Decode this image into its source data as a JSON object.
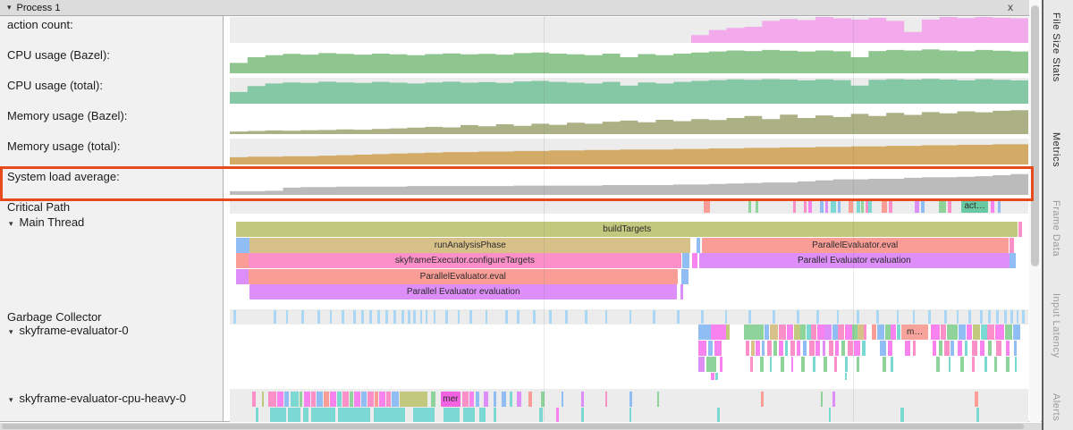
{
  "window": {
    "title": "Process 1",
    "collapse": "▾",
    "close": "x"
  },
  "side_tabs": [
    {
      "label": "File Size Stats",
      "active": true
    },
    {
      "label": "Metrics",
      "active": true
    },
    {
      "label": "Frame Data",
      "active": false
    },
    {
      "label": "Input Latency",
      "active": false
    },
    {
      "label": "Alerts",
      "active": false
    }
  ],
  "metric_rows": [
    {
      "label": "action count:"
    },
    {
      "label": "CPU usage (Bazel):"
    },
    {
      "label": "CPU usage (total):"
    },
    {
      "label": "Memory usage (Bazel):"
    },
    {
      "label": "Memory usage (total):"
    },
    {
      "label": "System load average:"
    }
  ],
  "chart_data": [
    {
      "type": "area",
      "title": "action count",
      "color": "#f2aaed",
      "ylim": [
        0,
        1
      ],
      "values": [
        0,
        0,
        0,
        0,
        0,
        0,
        0,
        0,
        0,
        0,
        0,
        0,
        0,
        0,
        0,
        0,
        0,
        0,
        0,
        0,
        0,
        0,
        0,
        0,
        0,
        0,
        0.3,
        0.5,
        0.58,
        0.62,
        0.85,
        0.92,
        0.88,
        1,
        0.95,
        0.9,
        0.97,
        0.85,
        0.42,
        0.9,
        1,
        0.96,
        1,
        0.97,
        0.95
      ]
    },
    {
      "type": "area",
      "title": "CPU usage (Bazel)",
      "color": "#8fc58e",
      "ylim": [
        0,
        1
      ],
      "values": [
        0.4,
        0.62,
        0.7,
        0.75,
        0.72,
        0.78,
        0.75,
        0.72,
        0.76,
        0.73,
        0.7,
        0.74,
        0.77,
        0.73,
        0.75,
        0.72,
        0.78,
        0.8,
        0.76,
        0.73,
        0.7,
        0.76,
        0.62,
        0.74,
        0.7,
        0.76,
        0.8,
        0.84,
        0.88,
        0.86,
        0.9,
        0.87,
        0.84,
        0.88,
        0.85,
        0.62,
        0.86,
        0.9,
        0.88,
        0.92,
        0.88,
        0.85,
        0.9,
        0.87,
        0.84
      ]
    },
    {
      "type": "area",
      "title": "CPU usage (total)",
      "color": "#85c8a5",
      "ylim": [
        0,
        1
      ],
      "values": [
        0.45,
        0.68,
        0.78,
        0.82,
        0.8,
        0.85,
        0.82,
        0.8,
        0.84,
        0.81,
        0.78,
        0.82,
        0.85,
        0.81,
        0.83,
        0.8,
        0.86,
        0.88,
        0.84,
        0.81,
        0.78,
        0.84,
        0.7,
        0.82,
        0.78,
        0.84,
        0.88,
        0.91,
        0.94,
        0.92,
        0.95,
        0.93,
        0.9,
        0.94,
        0.91,
        0.7,
        0.92,
        0.95,
        0.93,
        0.96,
        0.93,
        0.9,
        0.95,
        0.92,
        0.9
      ]
    },
    {
      "type": "area",
      "title": "Memory usage (Bazel)",
      "color": "#abb184",
      "ylim": [
        0,
        1
      ],
      "values": [
        0.1,
        0.12,
        0.14,
        0.13,
        0.15,
        0.16,
        0.18,
        0.17,
        0.2,
        0.22,
        0.25,
        0.28,
        0.26,
        0.35,
        0.3,
        0.38,
        0.32,
        0.4,
        0.36,
        0.44,
        0.4,
        0.48,
        0.52,
        0.46,
        0.55,
        0.5,
        0.58,
        0.54,
        0.62,
        0.7,
        0.58,
        0.75,
        0.62,
        0.72,
        0.66,
        0.78,
        0.7,
        0.82,
        0.74,
        0.85,
        0.8,
        0.88,
        0.84,
        0.9,
        0.92
      ]
    },
    {
      "type": "area",
      "title": "Memory usage (total)",
      "color": "#d3ab66",
      "ylim": [
        0,
        1
      ],
      "values": [
        0.28,
        0.3,
        0.3,
        0.32,
        0.32,
        0.34,
        0.36,
        0.38,
        0.4,
        0.42,
        0.44,
        0.46,
        0.48,
        0.48,
        0.5,
        0.5,
        0.52,
        0.52,
        0.54,
        0.54,
        0.56,
        0.56,
        0.58,
        0.58,
        0.58,
        0.6,
        0.6,
        0.62,
        0.62,
        0.64,
        0.64,
        0.66,
        0.66,
        0.68,
        0.68,
        0.7,
        0.7,
        0.72,
        0.72,
        0.74,
        0.74,
        0.76,
        0.76,
        0.78,
        0.78
      ]
    },
    {
      "type": "area",
      "title": "System load average",
      "color": "#bbbbbb",
      "ylim": [
        0,
        1
      ],
      "values": [
        0.14,
        0.14,
        0.16,
        0.28,
        0.3,
        0.3,
        0.32,
        0.32,
        0.32,
        0.32,
        0.34,
        0.34,
        0.34,
        0.34,
        0.34,
        0.34,
        0.36,
        0.36,
        0.36,
        0.36,
        0.36,
        0.38,
        0.38,
        0.38,
        0.38,
        0.4,
        0.4,
        0.42,
        0.44,
        0.46,
        0.48,
        0.48,
        0.52,
        0.56,
        0.6,
        0.6,
        0.62,
        0.62,
        0.66,
        0.68,
        0.68,
        0.7,
        0.72,
        0.76,
        0.8
      ]
    }
  ],
  "palette": {
    "blue": "#8fbdf4",
    "magenta": "#f883ee",
    "pink": "#fb90c8",
    "green": "#8ed39a",
    "tan": "#d8c089",
    "purple": "#dd8ef8",
    "teal": "#7cd8d2",
    "salmon": "#fa9d96",
    "olive": "#c2c87e",
    "chipgreen": "#69c9a2",
    "chipmagenta": "#f263e2",
    "chipsalmon": "#f7a29b",
    "gcblue": "#abd7f4"
  },
  "highlight": {
    "color": "#e8491d"
  },
  "track_labels": {
    "critical_path": "Critical Path",
    "main_thread": "Main Thread",
    "gc": "Garbage Collector",
    "eval0": "skyframe-evaluator-0",
    "evalcpu": "skyframe-evaluator-cpu-heavy-0"
  },
  "critical_path_spans": [
    [
      59.4,
      0.7,
      "salmon"
    ],
    [
      64.9,
      0.35,
      "green"
    ],
    [
      65.8,
      0.35,
      "green"
    ],
    [
      70.5,
      0.35,
      "pink"
    ],
    [
      71.9,
      0.35,
      "pink"
    ],
    [
      72.5,
      0.35,
      "magenta"
    ],
    [
      73.9,
      0.45,
      "blue"
    ],
    [
      74.6,
      0.35,
      "purple"
    ],
    [
      75.2,
      0.7,
      "teal"
    ],
    [
      76.1,
      0.35,
      "blue"
    ],
    [
      77.5,
      0.55,
      "salmon"
    ],
    [
      78.5,
      0.45,
      "teal"
    ],
    [
      79.1,
      0.35,
      "green"
    ],
    [
      79.6,
      0.35,
      "pink"
    ],
    [
      80.0,
      0.45,
      "teal"
    ],
    [
      81.6,
      0.7,
      "salmon"
    ],
    [
      82.5,
      0.45,
      "pink"
    ],
    [
      85.8,
      0.55,
      "purple"
    ],
    [
      86.6,
      0.45,
      "blue"
    ],
    [
      88.8,
      0.9,
      "green"
    ],
    [
      89.9,
      0.45,
      "pink"
    ],
    [
      91.6,
      3.4,
      "chipgreen",
      "act…"
    ],
    [
      95.3,
      0.45,
      "magenta"
    ],
    [
      96.2,
      0.3,
      "blue"
    ]
  ],
  "main_thread_rows": [
    [
      [
        0.8,
        97.9,
        "olive",
        "buildTargets"
      ],
      [
        98.8,
        0.4,
        "pink"
      ]
    ],
    [
      [
        0.8,
        1.7,
        "blue"
      ],
      [
        2.5,
        55.2,
        "tan",
        "runAnalysisPhase"
      ],
      [
        58.4,
        0.5,
        "blue"
      ],
      [
        59.1,
        38.4,
        "salmon",
        "ParallelEvaluator.eval"
      ],
      [
        97.6,
        0.6,
        "pink"
      ]
    ],
    [
      [
        0.8,
        1.5,
        "salmon"
      ],
      [
        2.3,
        54.3,
        "pink",
        "skyframeExecutor.configureTargets"
      ],
      [
        56.7,
        0.9,
        "blue"
      ],
      [
        57.9,
        0.7,
        "magenta"
      ],
      [
        58.8,
        38.8,
        "purple",
        "Parallel Evaluator evaluation"
      ],
      [
        97.7,
        0.7,
        "blue"
      ]
    ],
    [
      [
        0.8,
        1.5,
        "purple"
      ],
      [
        2.3,
        53.8,
        "salmon",
        "ParallelEvaluator.eval"
      ],
      [
        56.6,
        0.9,
        "blue"
      ]
    ],
    [
      [
        2.5,
        53.5,
        "purple",
        "Parallel Evaluator evaluation"
      ],
      [
        56.4,
        0.4,
        "purple"
      ]
    ]
  ],
  "gc_ticks": [
    0.5,
    5.5,
    7,
    9,
    11,
    12.5,
    14,
    15.5,
    16.5,
    17.5,
    18.5,
    19.5,
    20.5,
    21.5,
    22.3,
    23,
    23.8,
    24.5,
    25.5,
    27,
    28.5,
    30,
    32,
    34.5,
    36,
    38,
    40,
    42,
    44.5,
    47,
    50,
    53,
    56,
    59,
    62,
    65,
    68,
    71,
    73.5,
    76,
    78.5,
    81,
    83.5,
    85.5,
    87.5,
    89.5,
    91,
    92.5,
    94,
    95,
    96,
    97,
    97.8,
    98.5,
    99.2
  ],
  "evaluator0_levels": [
    [
      [
        58.7,
        1.5,
        "blue"
      ],
      [
        60.2,
        2.0,
        "magenta"
      ],
      [
        62.2,
        0.4,
        "olive"
      ],
      [
        64.4,
        2.5,
        "green"
      ],
      [
        67.0,
        0.5,
        "blue"
      ],
      [
        67.6,
        1.1,
        "tan"
      ],
      [
        68.8,
        0.9,
        "pink"
      ],
      [
        69.8,
        0.8,
        "magenta"
      ],
      [
        70.7,
        0.7,
        "olive"
      ],
      [
        71.4,
        0.7,
        "green"
      ],
      [
        72.2,
        0.6,
        "teal"
      ],
      [
        72.8,
        0.7,
        "pink"
      ],
      [
        73.6,
        0.9,
        "magenta"
      ],
      [
        74.5,
        0.9,
        "purple"
      ],
      [
        75.5,
        0.7,
        "blue"
      ],
      [
        76.2,
        0.7,
        "pink"
      ],
      [
        77.0,
        0.9,
        "magenta"
      ],
      [
        77.9,
        0.7,
        "green"
      ],
      [
        78.6,
        0.8,
        "tan"
      ],
      [
        79.4,
        0.3,
        "pink"
      ],
      [
        80.4,
        0.6,
        "salmon"
      ],
      [
        81.1,
        0.9,
        "blue"
      ],
      [
        82.1,
        0.7,
        "green"
      ],
      [
        82.8,
        0.6,
        "magenta"
      ],
      [
        83.5,
        0.5,
        "teal"
      ],
      [
        84.1,
        3.4,
        "chipsalmon",
        "m…"
      ],
      [
        87.8,
        1.1,
        "magenta"
      ],
      [
        89.0,
        0.7,
        "pink"
      ],
      [
        89.8,
        1.4,
        "green"
      ],
      [
        91.3,
        0.9,
        "blue"
      ],
      [
        92.3,
        0.7,
        "magenta"
      ],
      [
        93.1,
        0.9,
        "olive"
      ],
      [
        94.1,
        0.7,
        "teal"
      ],
      [
        94.9,
        0.9,
        "pink"
      ],
      [
        95.9,
        1.1,
        "magenta"
      ],
      [
        97.1,
        0.9,
        "green"
      ],
      [
        98.1,
        0.9,
        "blue"
      ]
    ],
    [
      [
        58.7,
        1.0,
        "magenta"
      ],
      [
        59.9,
        0.6,
        "blue"
      ],
      [
        60.7,
        0.9,
        "magenta"
      ],
      [
        64.6,
        0.5,
        "pink"
      ],
      [
        65.3,
        0.4,
        "tan"
      ],
      [
        65.9,
        0.5,
        "magenta"
      ],
      [
        66.6,
        0.4,
        "blue"
      ],
      [
        67.3,
        0.6,
        "pink"
      ],
      [
        68.1,
        0.4,
        "green"
      ],
      [
        68.8,
        0.5,
        "magenta"
      ],
      [
        69.5,
        0.4,
        "teal"
      ],
      [
        70.2,
        0.6,
        "pink"
      ],
      [
        71.0,
        0.5,
        "magenta"
      ],
      [
        71.8,
        0.4,
        "blue"
      ],
      [
        72.6,
        0.6,
        "pink"
      ],
      [
        73.4,
        0.5,
        "magenta"
      ],
      [
        74.2,
        0.4,
        "purple"
      ],
      [
        75.0,
        0.6,
        "pink"
      ],
      [
        75.8,
        0.5,
        "magenta"
      ],
      [
        76.6,
        0.4,
        "green"
      ],
      [
        77.4,
        0.6,
        "pink"
      ],
      [
        78.2,
        0.8,
        "magenta"
      ],
      [
        79.2,
        0.4,
        "teal"
      ],
      [
        81.4,
        0.8,
        "blue"
      ],
      [
        82.4,
        0.6,
        "magenta"
      ],
      [
        84.6,
        0.6,
        "magenta"
      ],
      [
        85.5,
        0.4,
        "pink"
      ],
      [
        88.0,
        0.5,
        "magenta"
      ],
      [
        88.8,
        0.4,
        "green"
      ],
      [
        89.5,
        0.6,
        "pink"
      ],
      [
        90.3,
        0.4,
        "blue"
      ],
      [
        91.2,
        0.5,
        "magenta"
      ],
      [
        92.0,
        0.4,
        "teal"
      ],
      [
        93.0,
        0.6,
        "pink"
      ],
      [
        94.0,
        0.5,
        "magenta"
      ],
      [
        95.0,
        0.4,
        "green"
      ],
      [
        96.0,
        0.6,
        "pink"
      ],
      [
        97.2,
        0.5,
        "magenta"
      ],
      [
        98.2,
        0.4,
        "blue"
      ]
    ],
    [
      [
        58.7,
        0.8,
        "purple"
      ],
      [
        59.7,
        1.2,
        "green"
      ],
      [
        61.4,
        0.3,
        "magenta"
      ],
      [
        65.2,
        0.3,
        "pink"
      ],
      [
        66.4,
        0.4,
        "green"
      ],
      [
        67.6,
        0.3,
        "teal"
      ],
      [
        69.0,
        0.4,
        "green"
      ],
      [
        70.3,
        0.3,
        "magenta"
      ],
      [
        71.6,
        0.4,
        "green"
      ],
      [
        73.0,
        0.3,
        "teal"
      ],
      [
        74.4,
        0.4,
        "green"
      ],
      [
        75.7,
        0.3,
        "pink"
      ],
      [
        77.0,
        0.4,
        "teal"
      ],
      [
        78.5,
        0.3,
        "green"
      ],
      [
        81.8,
        0.4,
        "green"
      ],
      [
        82.8,
        0.3,
        "teal"
      ],
      [
        88.5,
        0.4,
        "green"
      ],
      [
        90.0,
        0.3,
        "teal"
      ],
      [
        91.5,
        0.4,
        "green"
      ],
      [
        93.0,
        0.3,
        "pink"
      ],
      [
        94.5,
        0.4,
        "teal"
      ],
      [
        95.8,
        0.3,
        "green"
      ],
      [
        97.2,
        0.4,
        "green"
      ],
      [
        98.3,
        0.3,
        "teal"
      ]
    ],
    [
      [
        60.3,
        0.4,
        "magenta"
      ],
      [
        60.8,
        0.3,
        "teal"
      ],
      [
        77.0,
        0.3,
        "teal"
      ]
    ]
  ],
  "evaluator_cpu_levels": [
    [
      [
        2.8,
        0.4,
        "pink"
      ],
      [
        4.0,
        0.3,
        "olive"
      ],
      [
        4.8,
        1.0,
        "pink"
      ],
      [
        5.9,
        0.8,
        "magenta"
      ],
      [
        6.8,
        0.6,
        "blue"
      ],
      [
        7.6,
        1.0,
        "teal"
      ],
      [
        8.7,
        0.4,
        "green"
      ],
      [
        9.3,
        0.8,
        "magenta"
      ],
      [
        10.2,
        0.6,
        "pink"
      ],
      [
        10.9,
        0.8,
        "blue"
      ],
      [
        11.8,
        0.6,
        "salmon"
      ],
      [
        12.5,
        0.8,
        "magenta"
      ],
      [
        13.4,
        0.6,
        "teal"
      ],
      [
        14.1,
        0.8,
        "pink"
      ],
      [
        15.0,
        0.5,
        "green"
      ],
      [
        15.6,
        0.8,
        "magenta"
      ],
      [
        16.5,
        0.6,
        "blue"
      ],
      [
        17.2,
        0.8,
        "pink"
      ],
      [
        18.1,
        0.5,
        "salmon"
      ],
      [
        18.7,
        0.8,
        "magenta"
      ],
      [
        19.6,
        0.6,
        "pink"
      ],
      [
        20.3,
        0.9,
        "blue"
      ],
      [
        21.3,
        3.5,
        "olive"
      ],
      [
        25.2,
        0.6,
        "green"
      ],
      [
        26.4,
        2.5,
        "chipmagenta",
        "mer"
      ],
      [
        29.1,
        0.8,
        "pink"
      ],
      [
        30.0,
        0.6,
        "magenta"
      ],
      [
        30.8,
        0.4,
        "blue"
      ],
      [
        31.8,
        0.6,
        "purple"
      ],
      [
        33.0,
        0.4,
        "blue"
      ],
      [
        34.0,
        0.6,
        "blue"
      ],
      [
        35.0,
        0.4,
        "teal"
      ],
      [
        36.0,
        0.5,
        "purple"
      ],
      [
        37.4,
        0.4,
        "salmon"
      ],
      [
        39.0,
        0.4,
        "green"
      ],
      [
        41.5,
        0.3,
        "blue"
      ],
      [
        44.0,
        0.4,
        "purple"
      ],
      [
        47.0,
        0.3,
        "pink"
      ],
      [
        50.0,
        0.4,
        "blue"
      ],
      [
        53.5,
        0.3,
        "green"
      ],
      [
        66.5,
        0.4,
        "salmon"
      ],
      [
        74.0,
        0.3,
        "green"
      ],
      [
        75.5,
        0.3,
        "purple"
      ],
      [
        93.3,
        0.4,
        "salmon"
      ]
    ],
    [
      [
        3.3,
        0.3,
        "teal"
      ],
      [
        5.0,
        2.0,
        "teal"
      ],
      [
        7.3,
        1.5,
        "teal"
      ],
      [
        9.2,
        0.7,
        "teal"
      ],
      [
        10.2,
        3.0,
        "teal"
      ],
      [
        13.6,
        4.0,
        "teal"
      ],
      [
        18.0,
        4.0,
        "teal"
      ],
      [
        23.0,
        2.6,
        "teal"
      ],
      [
        26.8,
        2.0,
        "teal"
      ],
      [
        29.2,
        1.5,
        "teal"
      ],
      [
        31.2,
        0.8,
        "teal"
      ],
      [
        33.0,
        0.4,
        "teal"
      ],
      [
        38.8,
        0.4,
        "teal"
      ],
      [
        40.9,
        0.3,
        "magenta"
      ],
      [
        44.0,
        0.4,
        "teal"
      ],
      [
        50.0,
        0.3,
        "teal"
      ],
      [
        61.0,
        0.4,
        "teal"
      ],
      [
        75.0,
        0.3,
        "teal"
      ],
      [
        84.0,
        0.4,
        "teal"
      ],
      [
        93.5,
        0.3,
        "teal"
      ]
    ]
  ]
}
